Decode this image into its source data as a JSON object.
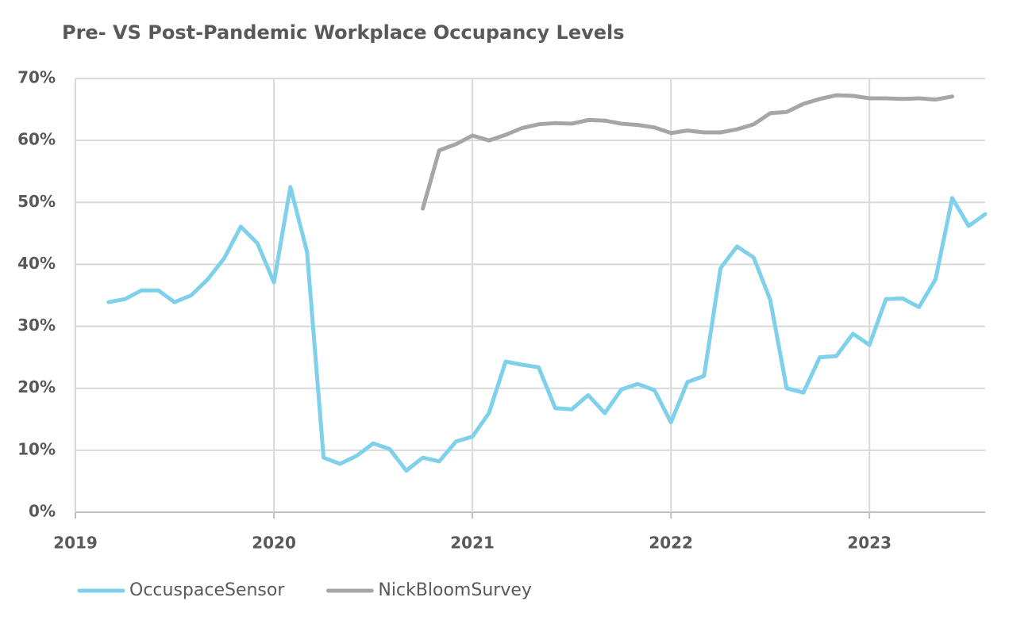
{
  "chart_data": {
    "type": "line",
    "title": "Pre- VS Post-Pandemic Workplace Occupancy Levels",
    "x": [
      2019.167,
      2019.25,
      2019.333,
      2019.417,
      2019.5,
      2019.583,
      2019.667,
      2019.75,
      2019.833,
      2019.917,
      2020,
      2020.083,
      2020.167,
      2020.25,
      2020.333,
      2020.417,
      2020.5,
      2020.583,
      2020.667,
      2020.75,
      2020.833,
      2020.917,
      2021,
      2021.083,
      2021.167,
      2021.25,
      2021.333,
      2021.417,
      2021.5,
      2021.583,
      2021.667,
      2021.75,
      2021.833,
      2021.917,
      2022,
      2022.083,
      2022.167,
      2022.25,
      2022.333,
      2022.417,
      2022.5,
      2022.583,
      2022.667,
      2022.75,
      2022.833,
      2022.917,
      2023,
      2023.083,
      2023.167,
      2023.25,
      2023.333,
      2023.417,
      2023.5,
      2023.583
    ],
    "series": [
      {
        "name": "OccuspaceSensor",
        "color": "#7fd0ea",
        "values": [
          33.9,
          34.4,
          35.8,
          35.8,
          33.9,
          35.0,
          37.6,
          41.0,
          46.1,
          43.4,
          37.1,
          52.5,
          42.0,
          8.8,
          7.8,
          9.1,
          11.1,
          10.2,
          6.7,
          8.8,
          8.2,
          11.4,
          12.2,
          16.0,
          24.3,
          23.8,
          23.4,
          16.8,
          16.6,
          18.9,
          16.0,
          19.8,
          20.7,
          19.7,
          14.5,
          21.0,
          22.0,
          39.4,
          42.9,
          41.1,
          34.3,
          20.0,
          19.3,
          25.0,
          25.2,
          28.8,
          27.0,
          34.4,
          34.5,
          33.1,
          37.6,
          50.7,
          46.2,
          48.1
        ]
      },
      {
        "name": "NickBloomSurvey",
        "color": "#a6a6a6",
        "values": [
          null,
          null,
          null,
          null,
          null,
          null,
          null,
          null,
          null,
          null,
          null,
          null,
          null,
          null,
          null,
          null,
          null,
          null,
          null,
          49.0,
          58.4,
          59.4,
          60.8,
          60.0,
          60.9,
          62.0,
          62.6,
          62.8,
          62.7,
          63.3,
          63.2,
          62.7,
          62.5,
          62.1,
          61.2,
          61.6,
          61.3,
          61.3,
          61.8,
          62.6,
          64.4,
          64.6,
          65.9,
          66.7,
          67.3,
          67.2,
          66.8,
          66.8,
          66.7,
          66.8,
          66.6,
          67.1,
          null,
          null
        ]
      }
    ],
    "xlim": [
      2019,
      2023.583
    ],
    "xticks": [
      2019,
      2020,
      2021,
      2022,
      2023
    ],
    "ylim": [
      0,
      70
    ],
    "yticks": [
      {
        "value": 0,
        "label": "0%"
      },
      {
        "value": 10,
        "label": "10%"
      },
      {
        "value": 20,
        "label": "20%"
      },
      {
        "value": 30,
        "label": "30%"
      },
      {
        "value": 40,
        "label": "40%"
      },
      {
        "value": 50,
        "label": "50%"
      },
      {
        "value": 60,
        "label": "60%"
      },
      {
        "value": 70,
        "label": "70%"
      }
    ],
    "grid": true,
    "legend": "bottom"
  }
}
